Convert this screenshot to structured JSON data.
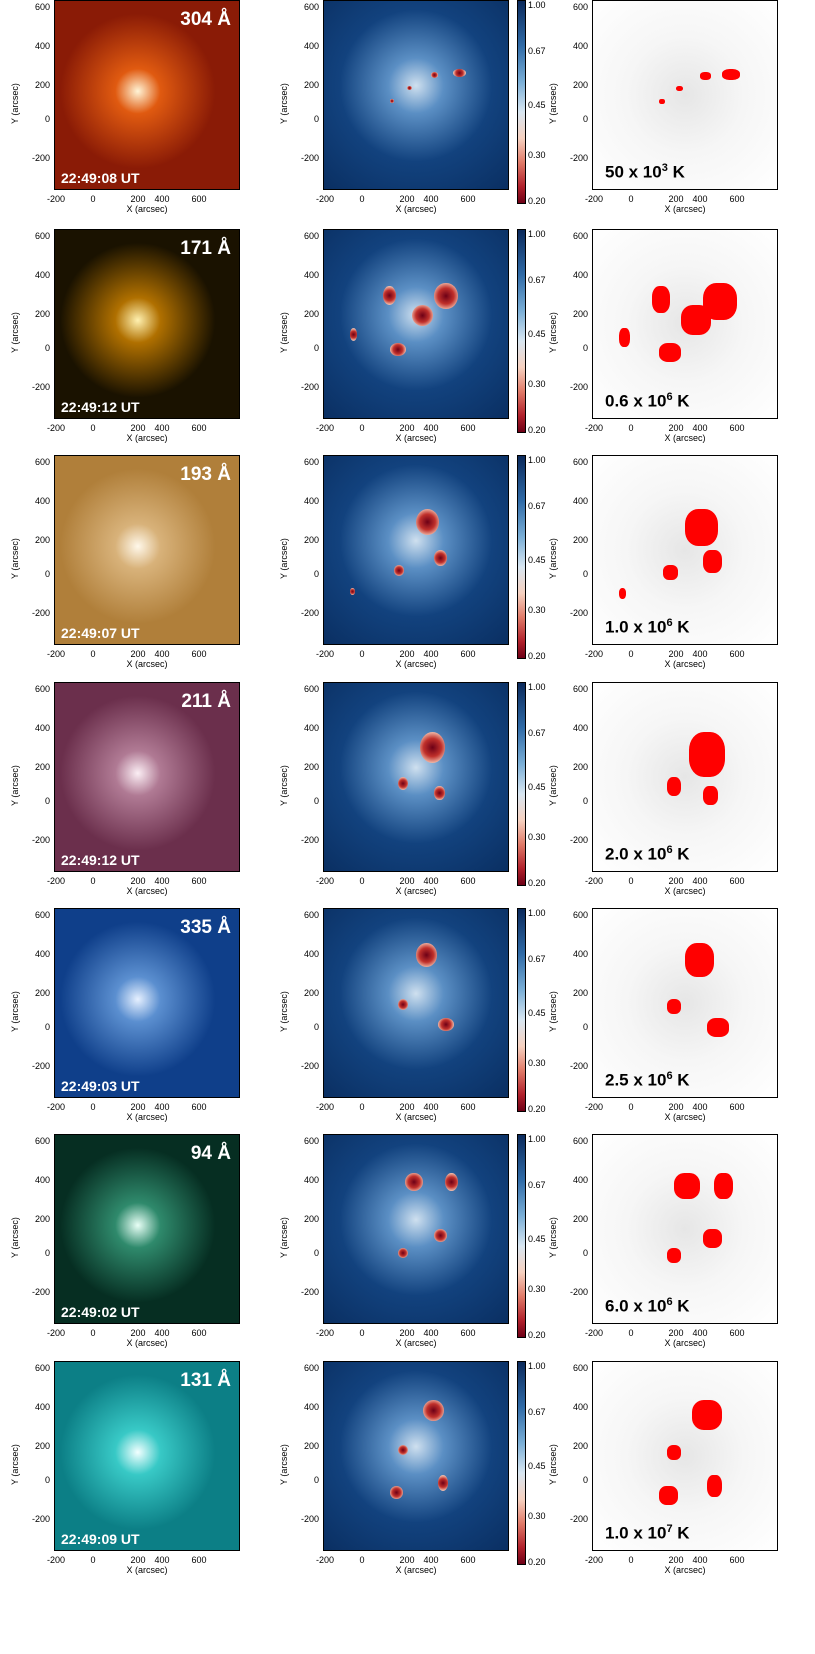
{
  "rows": [
    {
      "wavelength": "304 Å",
      "time": "22:49:08 UT",
      "temp_base": "50 x 10",
      "temp_exp": "3",
      "temp_unit": " K",
      "bg": "#8a1b06",
      "bg2": "#e05a10",
      "bright": "#fff4d6"
    },
    {
      "wavelength": "171 Å",
      "time": "22:49:12 UT",
      "temp_base": "0.6 x 10",
      "temp_exp": "6",
      "temp_unit": " K",
      "bg": "#1a1200",
      "bg2": "#b07000",
      "bright": "#fff1b0"
    },
    {
      "wavelength": "193 Å",
      "time": "22:49:07 UT",
      "temp_base": "1.0 x 10",
      "temp_exp": "6",
      "temp_unit": " K",
      "bg": "#b07f3a",
      "bg2": "#d8b27a",
      "bright": "#fff8ea"
    },
    {
      "wavelength": "211 Å",
      "time": "22:49:12 UT",
      "temp_base": "2.0 x 10",
      "temp_exp": "6",
      "temp_unit": " K",
      "bg": "#6b2f4c",
      "bg2": "#b07a94",
      "bright": "#fbeef4"
    },
    {
      "wavelength": "335 Å",
      "time": "22:49:03 UT",
      "temp_base": "2.5 x 10",
      "temp_exp": "6",
      "temp_unit": " K",
      "bg": "#0f3f8a",
      "bg2": "#5b8fd0",
      "bright": "#e6f0ff"
    },
    {
      "wavelength": "94 Å",
      "time": "22:49:02 UT",
      "temp_base": "6.0 x 10",
      "temp_exp": "6",
      "temp_unit": " K",
      "bg": "#062e22",
      "bg2": "#2f8a6c",
      "bright": "#e8fff6"
    },
    {
      "wavelength": "131 Å",
      "time": "22:49:09 UT",
      "temp_base": "1.0 x 10",
      "temp_exp": "7",
      "temp_unit": " K",
      "bg": "#0c7f86",
      "bg2": "#38c9c6",
      "bright": "#f2ffff"
    }
  ],
  "axes": {
    "ylabel": "Y (arcsec)",
    "xlabel": "X (arcsec)",
    "yticks": [
      "600",
      "400",
      "200",
      "0",
      "-200"
    ],
    "xticks": [
      "-200",
      "0",
      "200",
      "400",
      "600"
    ]
  },
  "colorbar": {
    "labels": [
      "1.00",
      "0.67",
      "0.45",
      "0.30",
      "0.20"
    ]
  },
  "colors": {
    "map_blue": "#12427e",
    "highlight_red": "#ff0000"
  }
}
